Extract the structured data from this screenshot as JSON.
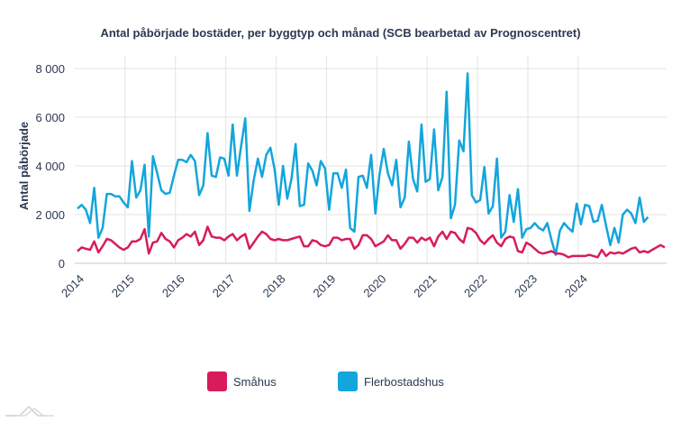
{
  "chart_data": {
    "type": "line",
    "title": "Antal påbörjade bostäder, per byggtyp och månad (SCB bearbetad av Prognoscentret)",
    "xlabel": "",
    "ylabel": "Antal påbörjade",
    "ylim": [
      0,
      8000
    ],
    "yticks": [
      0,
      2000,
      4000,
      6000,
      8000
    ],
    "ytick_labels": [
      "0",
      "2 000",
      "4 000",
      "6 000",
      "8 000"
    ],
    "x_tick_labels": [
      "2014",
      "2015",
      "2016",
      "2017",
      "2018",
      "2019",
      "2020",
      "2021",
      "2022",
      "2023",
      "2024"
    ],
    "x_start": "2014-01",
    "x_end": "2024-12",
    "grid": true,
    "legend_position": "bottom",
    "series": [
      {
        "name": "Småhus",
        "color": "#d81b5c",
        "values": [
          500,
          650,
          600,
          550,
          900,
          450,
          700,
          1000,
          950,
          800,
          650,
          550,
          650,
          900,
          900,
          1000,
          1400,
          400,
          850,
          900,
          1250,
          1000,
          900,
          650,
          950,
          1050,
          1200,
          1100,
          1300,
          750,
          950,
          1500,
          1100,
          1050,
          1050,
          950,
          1100,
          1200,
          950,
          1100,
          1200,
          600,
          850,
          1100,
          1300,
          1200,
          1000,
          950,
          1000,
          950,
          950,
          1000,
          1050,
          1100,
          700,
          700,
          950,
          900,
          750,
          700,
          750,
          1050,
          1050,
          950,
          1000,
          1000,
          600,
          750,
          1150,
          1150,
          1000,
          700,
          800,
          900,
          1150,
          950,
          950,
          600,
          800,
          1050,
          1050,
          850,
          1050,
          950,
          1050,
          700,
          1100,
          1300,
          1000,
          1300,
          1250,
          1000,
          850,
          1450,
          1400,
          1250,
          950,
          800,
          1000,
          1150,
          850,
          700,
          1000,
          1100,
          1050,
          500,
          450,
          850,
          750,
          600,
          450,
          400,
          450,
          500,
          400,
          400,
          350,
          250,
          300,
          300,
          300,
          300,
          350,
          300,
          250,
          550,
          300,
          450,
          400,
          450,
          400,
          500,
          600,
          650,
          450,
          500,
          450,
          550,
          650,
          750,
          650
        ],
        "markers": false
      },
      {
        "name": "Flerbostadshus",
        "color": "#13a5dc",
        "values": [
          2250,
          2400,
          2200,
          1650,
          3100,
          1050,
          1450,
          2850,
          2850,
          2750,
          2750,
          2500,
          2300,
          4200,
          2700,
          3000,
          4050,
          1100,
          4400,
          3700,
          3000,
          2850,
          2900,
          3600,
          4250,
          4250,
          4150,
          4450,
          4200,
          2800,
          3200,
          5350,
          3600,
          3550,
          4350,
          4300,
          3600,
          5700,
          3600,
          4800,
          5950,
          2150,
          3400,
          4300,
          3550,
          4450,
          4750,
          3850,
          2400,
          4000,
          2650,
          3450,
          4900,
          2350,
          2400,
          4100,
          3800,
          3200,
          4200,
          3900,
          2200,
          3700,
          3700,
          3100,
          3850,
          1450,
          1300,
          3550,
          3600,
          3100,
          4450,
          2050,
          3650,
          4700,
          3700,
          3200,
          4250,
          2300,
          2700,
          5000,
          3450,
          2950,
          5700,
          3350,
          3450,
          5500,
          3000,
          3550,
          7050,
          1850,
          2400,
          5050,
          4600,
          7800,
          2800,
          2500,
          2600,
          3950,
          2050,
          2350,
          4300,
          1050,
          1300,
          2800,
          1700,
          3050,
          1050,
          1400,
          1450,
          1650,
          1450,
          1350,
          1650,
          950,
          350,
          1350,
          1650,
          1450,
          1300,
          2450,
          1600,
          2400,
          2350,
          1700,
          1750,
          2400,
          1550,
          750,
          1450,
          850,
          2000,
          2200,
          2050,
          1650,
          2700,
          1700,
          1900
        ],
        "markers": false
      }
    ]
  },
  "logo": {
    "name": "chart-logo-mountains"
  }
}
